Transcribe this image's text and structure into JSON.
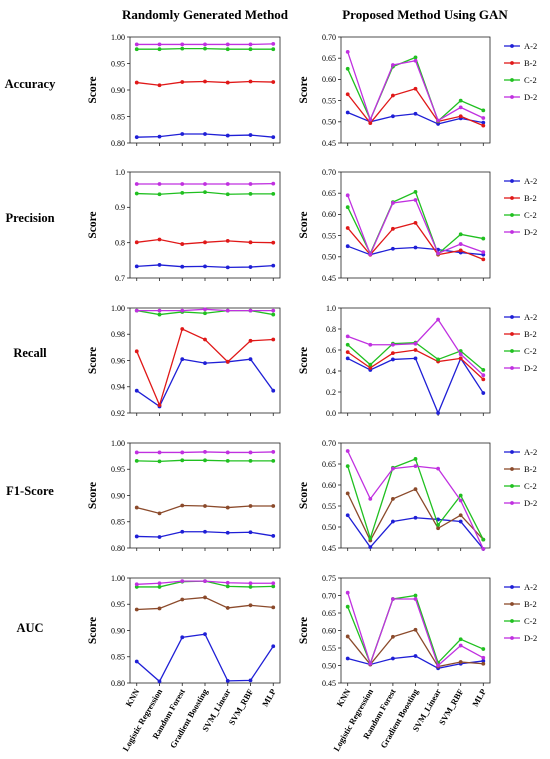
{
  "column_titles": [
    "Randomly Generated Method",
    "Proposed Method Using GAN"
  ],
  "row_labels": [
    "Accuracy",
    "Precision",
    "Recall",
    "F1-Score",
    "AUC"
  ],
  "ylabel": "Score",
  "categories": [
    "KNN",
    "Logistic Regression",
    "Random Forest",
    "Gradient Boosting",
    "SVM_Linear",
    "SVM_RBF",
    "MLP"
  ],
  "colors": {
    "A-2": "#1f1fd6",
    "B-2": "#e01818",
    "B-2-brown": "#8b4a2b",
    "C-2": "#20c020",
    "D-2": "#c030e0"
  },
  "chart_data": [
    {
      "type": "line",
      "row": "Accuracy",
      "column": "Randomly Generated Method",
      "ylabel": "Score",
      "ylim": [
        0.8,
        1.0
      ],
      "yticks": [
        "0.80",
        "0.85",
        "0.90",
        "0.95",
        "1.00"
      ],
      "categories": [
        "KNN",
        "Logistic Regression",
        "Random Forest",
        "Gradient Boosting",
        "SVM_Linear",
        "SVM_RBF",
        "MLP"
      ],
      "series": [
        {
          "name": "A-2",
          "color": "#1f1fd6",
          "values": [
            0.811,
            0.812,
            0.817,
            0.817,
            0.814,
            0.815,
            0.811
          ]
        },
        {
          "name": "B-2",
          "color": "#e01818",
          "values": [
            0.914,
            0.909,
            0.915,
            0.916,
            0.914,
            0.916,
            0.915
          ]
        },
        {
          "name": "C-2",
          "color": "#20c020",
          "values": [
            0.977,
            0.977,
            0.978,
            0.978,
            0.977,
            0.977,
            0.977
          ]
        },
        {
          "name": "D-2",
          "color": "#c030e0",
          "values": [
            0.986,
            0.986,
            0.986,
            0.986,
            0.986,
            0.986,
            0.987
          ]
        }
      ],
      "legend": false
    },
    {
      "type": "line",
      "row": "Accuracy",
      "column": "Proposed Method Using GAN",
      "ylabel": "Score",
      "ylim": [
        0.45,
        0.7
      ],
      "yticks": [
        "0.45",
        "0.50",
        "0.55",
        "0.60",
        "0.65",
        "0.70"
      ],
      "categories": [
        "KNN",
        "Logistic Regression",
        "Random Forest",
        "Gradient Boosting",
        "SVM_Linear",
        "SVM_RBF",
        "MLP"
      ],
      "series": [
        {
          "name": "A-2",
          "color": "#1f1fd6",
          "values": [
            0.522,
            0.5,
            0.513,
            0.519,
            0.495,
            0.508,
            0.498
          ]
        },
        {
          "name": "B-2",
          "color": "#e01818",
          "values": [
            0.565,
            0.497,
            0.562,
            0.578,
            0.501,
            0.513,
            0.491
          ]
        },
        {
          "name": "C-2",
          "color": "#20c020",
          "values": [
            0.625,
            0.505,
            0.63,
            0.652,
            0.502,
            0.55,
            0.527
          ]
        },
        {
          "name": "D-2",
          "color": "#c030e0",
          "values": [
            0.665,
            0.505,
            0.634,
            0.644,
            0.503,
            0.534,
            0.509
          ]
        }
      ],
      "legend": true
    },
    {
      "type": "line",
      "row": "Precision",
      "column": "Randomly Generated Method",
      "ylabel": "Score",
      "ylim": [
        0.7,
        1.0
      ],
      "yticks": [
        "0.7",
        "0.8",
        "0.9",
        "1.0"
      ],
      "categories": [
        "KNN",
        "Logistic Regression",
        "Random Forest",
        "Gradient Boosting",
        "SVM_Linear",
        "SVM_RBF",
        "MLP"
      ],
      "series": [
        {
          "name": "A-2",
          "color": "#1f1fd6",
          "values": [
            0.733,
            0.737,
            0.732,
            0.733,
            0.73,
            0.731,
            0.735
          ]
        },
        {
          "name": "B-2",
          "color": "#e01818",
          "values": [
            0.801,
            0.809,
            0.796,
            0.801,
            0.805,
            0.801,
            0.8
          ]
        },
        {
          "name": "C-2",
          "color": "#20c020",
          "values": [
            0.939,
            0.937,
            0.941,
            0.943,
            0.937,
            0.938,
            0.938
          ]
        },
        {
          "name": "D-2",
          "color": "#c030e0",
          "values": [
            0.966,
            0.966,
            0.966,
            0.966,
            0.966,
            0.966,
            0.967
          ]
        }
      ],
      "legend": false
    },
    {
      "type": "line",
      "row": "Precision",
      "column": "Proposed Method Using GAN",
      "ylabel": "Score",
      "ylim": [
        0.45,
        0.7
      ],
      "yticks": [
        "0.45",
        "0.50",
        "0.55",
        "0.60",
        "0.65",
        "0.70"
      ],
      "categories": [
        "KNN",
        "Logistic Regression",
        "Random Forest",
        "Gradient Boosting",
        "SVM_Linear",
        "SVM_RBF",
        "MLP"
      ],
      "series": [
        {
          "name": "A-2",
          "color": "#1f1fd6",
          "values": [
            0.525,
            0.505,
            0.519,
            0.522,
            0.517,
            0.51,
            0.505
          ]
        },
        {
          "name": "B-2",
          "color": "#e01818",
          "values": [
            0.568,
            0.505,
            0.566,
            0.58,
            0.505,
            0.515,
            0.494
          ]
        },
        {
          "name": "C-2",
          "color": "#20c020",
          "values": [
            0.617,
            0.508,
            0.629,
            0.653,
            0.507,
            0.553,
            0.543
          ]
        },
        {
          "name": "D-2",
          "color": "#c030e0",
          "values": [
            0.645,
            0.506,
            0.627,
            0.634,
            0.508,
            0.53,
            0.511
          ]
        }
      ],
      "legend": true
    },
    {
      "type": "line",
      "row": "Recall",
      "column": "Randomly Generated Method",
      "ylabel": "Score",
      "ylim": [
        0.92,
        1.0
      ],
      "yticks": [
        "0.92",
        "0.94",
        "0.96",
        "0.98",
        "1.00"
      ],
      "categories": [
        "KNN",
        "Logistic Regression",
        "Random Forest",
        "Gradient Boosting",
        "SVM_Linear",
        "SVM_RBF",
        "MLP"
      ],
      "series": [
        {
          "name": "A-2",
          "color": "#1f1fd6",
          "values": [
            0.937,
            0.925,
            0.961,
            0.958,
            0.959,
            0.961,
            0.937
          ]
        },
        {
          "name": "B-2",
          "color": "#e01818",
          "values": [
            0.967,
            0.926,
            0.984,
            0.976,
            0.959,
            0.975,
            0.976
          ]
        },
        {
          "name": "C-2",
          "color": "#20c020",
          "values": [
            0.998,
            0.995,
            0.997,
            0.996,
            0.998,
            0.998,
            0.995
          ]
        },
        {
          "name": "D-2",
          "color": "#c030e0",
          "values": [
            0.998,
            0.998,
            0.998,
            0.999,
            0.998,
            0.998,
            0.998
          ]
        }
      ],
      "legend": false
    },
    {
      "type": "line",
      "row": "Recall",
      "column": "Proposed Method Using GAN",
      "ylabel": "Score",
      "ylim": [
        0.0,
        1.0
      ],
      "yticks": [
        "0.0",
        "0.2",
        "0.4",
        "0.6",
        "0.8",
        "1.0"
      ],
      "categories": [
        "KNN",
        "Logistic Regression",
        "Random Forest",
        "Gradient Boosting",
        "SVM_Linear",
        "SVM_RBF",
        "MLP"
      ],
      "series": [
        {
          "name": "A-2",
          "color": "#1f1fd6",
          "values": [
            0.52,
            0.41,
            0.51,
            0.52,
            0.0,
            0.52,
            0.19
          ]
        },
        {
          "name": "B-2",
          "color": "#e01818",
          "values": [
            0.58,
            0.43,
            0.57,
            0.6,
            0.49,
            0.52,
            0.32
          ]
        },
        {
          "name": "C-2",
          "color": "#20c020",
          "values": [
            0.65,
            0.46,
            0.66,
            0.67,
            0.51,
            0.59,
            0.41
          ]
        },
        {
          "name": "D-2",
          "color": "#c030e0",
          "values": [
            0.73,
            0.65,
            0.65,
            0.66,
            0.89,
            0.56,
            0.36
          ]
        }
      ],
      "legend": true
    },
    {
      "type": "line",
      "row": "F1-Score",
      "column": "Randomly Generated Method",
      "ylabel": "Score",
      "ylim": [
        0.8,
        1.0
      ],
      "yticks": [
        "0.80",
        "0.85",
        "0.90",
        "0.95",
        "1.00"
      ],
      "categories": [
        "KNN",
        "Logistic Regression",
        "Random Forest",
        "Gradient Boosting",
        "SVM_Linear",
        "SVM_RBF",
        "MLP"
      ],
      "series": [
        {
          "name": "A-2",
          "color": "#1f1fd6",
          "values": [
            0.822,
            0.821,
            0.831,
            0.831,
            0.829,
            0.83,
            0.823
          ]
        },
        {
          "name": "B-2",
          "color": "#8b4a2b",
          "values": [
            0.877,
            0.866,
            0.881,
            0.88,
            0.877,
            0.88,
            0.88
          ]
        },
        {
          "name": "C-2",
          "color": "#20c020",
          "values": [
            0.966,
            0.965,
            0.967,
            0.967,
            0.966,
            0.966,
            0.966
          ]
        },
        {
          "name": "D-2",
          "color": "#c030e0",
          "values": [
            0.982,
            0.982,
            0.982,
            0.983,
            0.982,
            0.982,
            0.983
          ]
        }
      ],
      "legend": false
    },
    {
      "type": "line",
      "row": "F1-Score",
      "column": "Proposed Method Using GAN",
      "ylabel": "Score",
      "ylim": [
        0.45,
        0.7
      ],
      "yticks": [
        "0.45",
        "0.50",
        "0.55",
        "0.60",
        "0.65",
        "0.70"
      ],
      "categories": [
        "KNN",
        "Logistic Regression",
        "Random Forest",
        "Gradient Boosting",
        "SVM_Linear",
        "SVM_RBF",
        "MLP"
      ],
      "series": [
        {
          "name": "A-2",
          "color": "#1f1fd6",
          "values": [
            0.528,
            0.452,
            0.513,
            0.522,
            0.518,
            0.513,
            0.448
          ]
        },
        {
          "name": "B-2",
          "color": "#8b4a2b",
          "values": [
            0.58,
            0.468,
            0.567,
            0.59,
            0.497,
            0.528,
            0.47
          ]
        },
        {
          "name": "C-2",
          "color": "#20c020",
          "values": [
            0.645,
            0.473,
            0.641,
            0.662,
            0.505,
            0.575,
            0.47
          ]
        },
        {
          "name": "D-2",
          "color": "#c030e0",
          "values": [
            0.681,
            0.567,
            0.639,
            0.645,
            0.639,
            0.563,
            0.448
          ]
        }
      ],
      "legend": true
    },
    {
      "type": "line",
      "row": "AUC",
      "column": "Randomly Generated Method",
      "ylabel": "Score",
      "ylim": [
        0.8,
        1.0
      ],
      "yticks": [
        "0.80",
        "0.85",
        "0.90",
        "0.95",
        "1.00"
      ],
      "categories": [
        "KNN",
        "Logistic Regression",
        "Random Forest",
        "Gradient Boosting",
        "SVM_Linear",
        "SVM_RBF",
        "MLP"
      ],
      "series": [
        {
          "name": "A-2",
          "color": "#1f1fd6",
          "values": [
            0.841,
            0.803,
            0.887,
            0.893,
            0.804,
            0.805,
            0.87
          ]
        },
        {
          "name": "B-2",
          "color": "#8b4a2b",
          "values": [
            0.94,
            0.942,
            0.959,
            0.963,
            0.943,
            0.948,
            0.944
          ]
        },
        {
          "name": "C-2",
          "color": "#20c020",
          "values": [
            0.983,
            0.983,
            0.993,
            0.994,
            0.984,
            0.983,
            0.984
          ]
        },
        {
          "name": "D-2",
          "color": "#c030e0",
          "values": [
            0.988,
            0.99,
            0.994,
            0.994,
            0.991,
            0.99,
            0.99
          ]
        }
      ],
      "legend": false
    },
    {
      "type": "line",
      "row": "AUC",
      "column": "Proposed Method Using GAN",
      "ylabel": "Score",
      "ylim": [
        0.45,
        0.75
      ],
      "yticks": [
        "0.45",
        "0.50",
        "0.55",
        "0.60",
        "0.65",
        "0.70",
        "0.75"
      ],
      "categories": [
        "KNN",
        "Logistic Regression",
        "Random Forest",
        "Gradient Boosting",
        "SVM_Linear",
        "SVM_RBF",
        "MLP"
      ],
      "series": [
        {
          "name": "A-2",
          "color": "#1f1fd6",
          "values": [
            0.52,
            0.503,
            0.52,
            0.527,
            0.492,
            0.505,
            0.513
          ]
        },
        {
          "name": "B-2",
          "color": "#8b4a2b",
          "values": [
            0.583,
            0.503,
            0.582,
            0.602,
            0.497,
            0.51,
            0.505
          ]
        },
        {
          "name": "C-2",
          "color": "#20c020",
          "values": [
            0.668,
            0.506,
            0.69,
            0.7,
            0.508,
            0.575,
            0.547
          ]
        },
        {
          "name": "D-2",
          "color": "#c030e0",
          "values": [
            0.708,
            0.505,
            0.69,
            0.69,
            0.5,
            0.557,
            0.522
          ]
        }
      ],
      "legend": true
    }
  ]
}
